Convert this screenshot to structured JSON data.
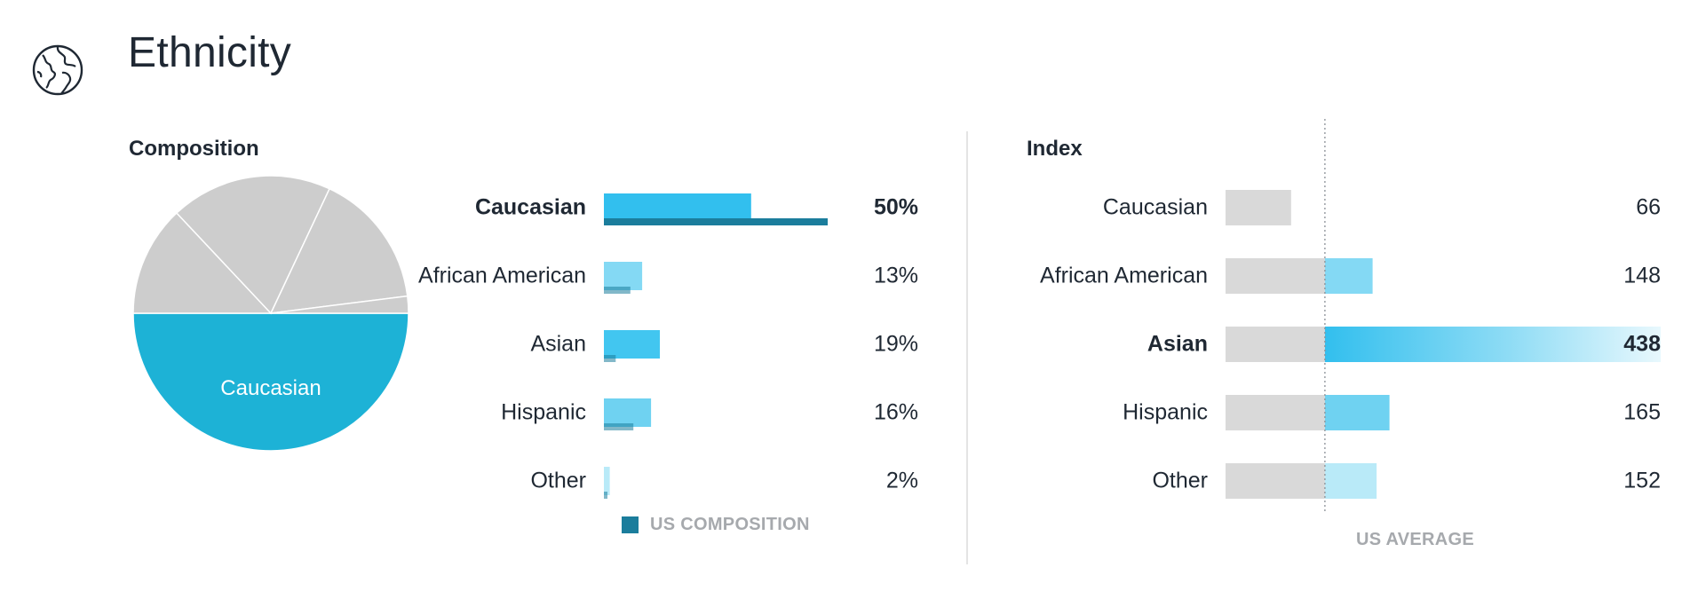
{
  "header": {
    "title": "Ethnicity",
    "icon": "globe-icon"
  },
  "composition": {
    "title": "Composition",
    "pie_label": "Caucasian",
    "legend_label": "US COMPOSITION",
    "legend_color": "#1b7d9c"
  },
  "index": {
    "title": "Index",
    "axis_label": "US AVERAGE"
  },
  "colors": {
    "pie_highlight": "#1db2d6",
    "pie_other": "#cdcdcd",
    "bar_caucasian": "#32bfee",
    "bar_african_american": "#84d9f4",
    "bar_asian": "#42c6f0",
    "bar_hispanic": "#6fd2f1",
    "bar_other": "#b9eaf8",
    "us_marker": "#1b7d9c",
    "index_base": "#d9d9d9"
  },
  "chart_data": [
    {
      "type": "pie",
      "title": "Composition",
      "categories": [
        "Caucasian",
        "African American",
        "Asian",
        "Hispanic",
        "Other"
      ],
      "values": [
        50,
        13,
        19,
        16,
        2
      ],
      "highlight": "Caucasian"
    },
    {
      "type": "bar",
      "title": "Composition",
      "categories": [
        "Caucasian",
        "African American",
        "Asian",
        "Hispanic",
        "Other"
      ],
      "series": [
        {
          "name": "",
          "values": [
            50,
            13,
            19,
            16,
            2
          ]
        },
        {
          "name": "US COMPOSITION",
          "values": [
            76,
            9,
            4,
            10,
            1
          ]
        }
      ],
      "value_labels": [
        "50%",
        "13%",
        "19%",
        "16%",
        "2%"
      ],
      "highlight": "Caucasian",
      "xlim": [
        0,
        76
      ]
    },
    {
      "type": "bar",
      "title": "Index",
      "categories": [
        "Caucasian",
        "African American",
        "Asian",
        "Hispanic",
        "Other"
      ],
      "values": [
        66,
        148,
        438,
        165,
        152
      ],
      "value_labels": [
        "66",
        "148",
        "438",
        "165",
        "152"
      ],
      "reference_line": 100,
      "reference_label": "US AVERAGE",
      "highlight": "Asian",
      "xlim": [
        0,
        438
      ]
    }
  ]
}
